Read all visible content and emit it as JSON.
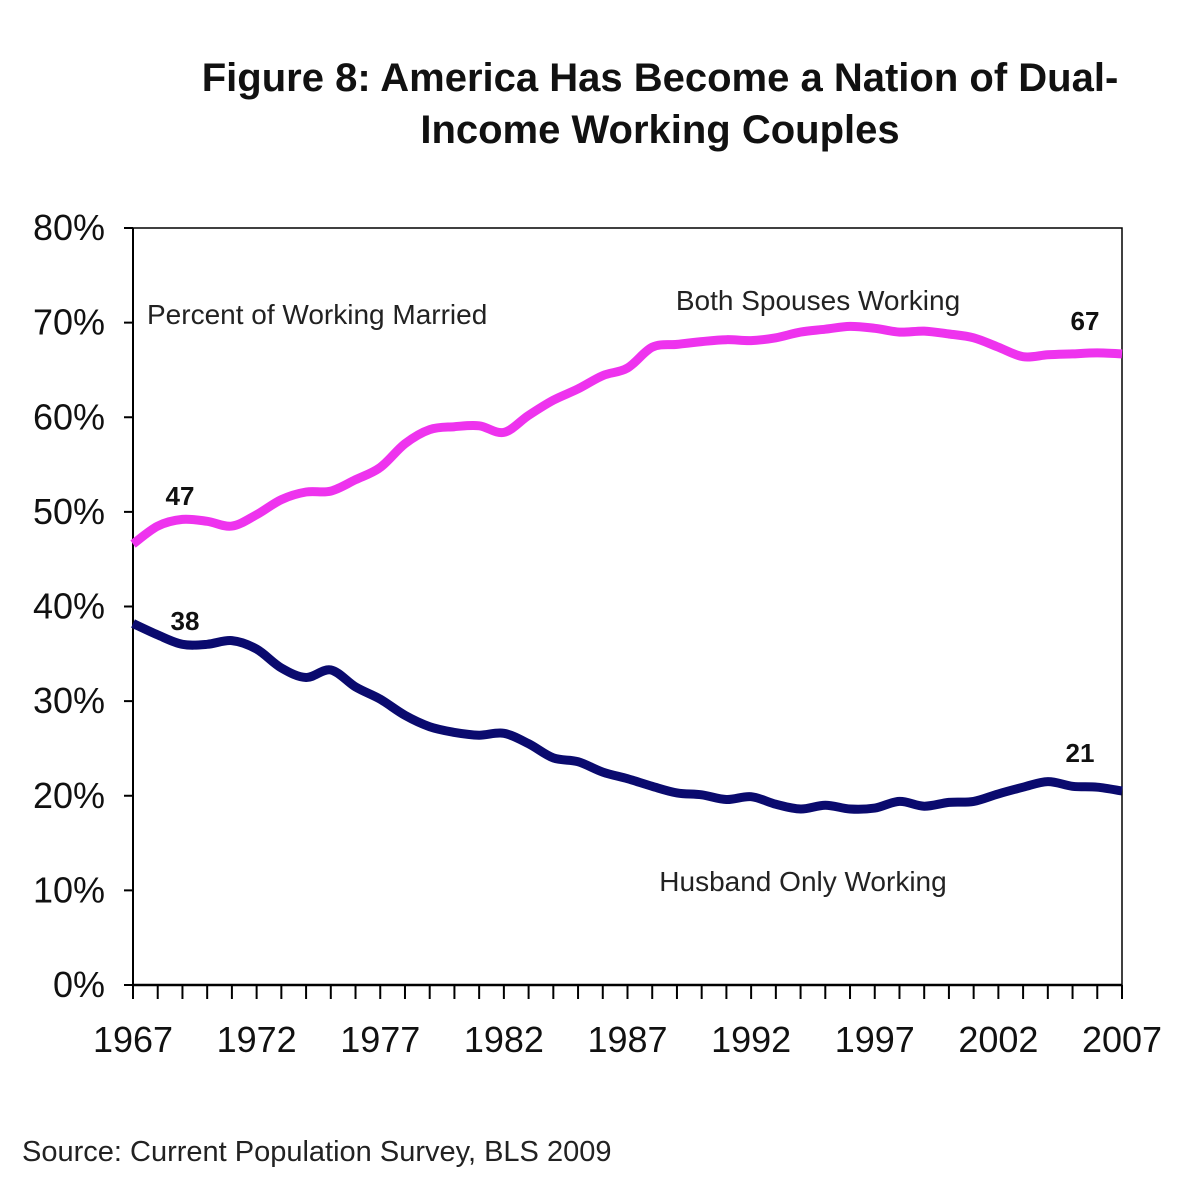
{
  "chart_data": {
    "type": "line",
    "title_line1": "Figure 8: America Has Become a Nation of Dual-",
    "title_line2": "Income Working Couples",
    "xlabel": "",
    "ylabel": "",
    "xlim": [
      1967,
      2007
    ],
    "ylim": [
      0,
      80
    ],
    "y_ticks": [
      0,
      10,
      20,
      30,
      40,
      50,
      60,
      70,
      80
    ],
    "y_tick_labels": [
      "0%",
      "10%",
      "20%",
      "30%",
      "40%",
      "50%",
      "60%",
      "70%",
      "80%"
    ],
    "x_ticks": [
      1967,
      1972,
      1977,
      1982,
      1987,
      1992,
      1997,
      2002,
      2007
    ],
    "x_tick_labels": [
      "1967",
      "1972",
      "1977",
      "1982",
      "1987",
      "1992",
      "1997",
      "2002",
      "2007"
    ],
    "grid": false,
    "annotation_left": "Percent of Working Married",
    "series": [
      {
        "name": "Both Spouses Working",
        "color": "#ee33ee",
        "x": [
          1967,
          1968,
          1969,
          1970,
          1971,
          1972,
          1973,
          1974,
          1975,
          1976,
          1977,
          1978,
          1979,
          1980,
          1981,
          1982,
          1983,
          1984,
          1985,
          1986,
          1987,
          1988,
          1989,
          1990,
          1991,
          1992,
          1993,
          1994,
          1995,
          1996,
          1997,
          1998,
          1999,
          2000,
          2001,
          2002,
          2003,
          2004,
          2005,
          2006,
          2007
        ],
        "values": [
          46.6,
          48.5,
          49.2,
          49.0,
          48.5,
          49.7,
          51.3,
          52.1,
          52.2,
          53.4,
          54.7,
          57.2,
          58.7,
          59.0,
          59.1,
          58.4,
          60.2,
          61.8,
          63.0,
          64.4,
          65.2,
          67.4,
          67.7,
          68.0,
          68.2,
          68.1,
          68.4,
          69.0,
          69.3,
          69.6,
          69.4,
          69.0,
          69.1,
          68.8,
          68.4,
          67.4,
          66.4,
          66.6,
          66.7,
          66.8,
          66.7
        ],
        "start_label": "47",
        "end_label": "67"
      },
      {
        "name": "Husband Only Working",
        "color": "#0a0a6e",
        "x": [
          1967,
          1968,
          1969,
          1970,
          1971,
          1972,
          1973,
          1974,
          1975,
          1976,
          1977,
          1978,
          1979,
          1980,
          1981,
          1982,
          1983,
          1984,
          1985,
          1986,
          1987,
          1988,
          1989,
          1990,
          1991,
          1992,
          1993,
          1994,
          1995,
          1996,
          1997,
          1998,
          1999,
          2000,
          2001,
          2002,
          2003,
          2004,
          2005,
          2006,
          2007
        ],
        "values": [
          38.2,
          37.0,
          36.0,
          36.0,
          36.4,
          35.5,
          33.5,
          32.5,
          33.3,
          31.5,
          30.2,
          28.5,
          27.3,
          26.7,
          26.4,
          26.6,
          25.5,
          24.0,
          23.6,
          22.5,
          21.8,
          21.0,
          20.3,
          20.1,
          19.6,
          19.9,
          19.1,
          18.6,
          19.0,
          18.6,
          18.7,
          19.4,
          18.9,
          19.3,
          19.4,
          20.2,
          20.9,
          21.5,
          21.0,
          20.9,
          20.5
        ],
        "start_label": "38",
        "end_label": "21"
      }
    ],
    "source": "Source: Current Population  Survey, BLS 2009"
  }
}
